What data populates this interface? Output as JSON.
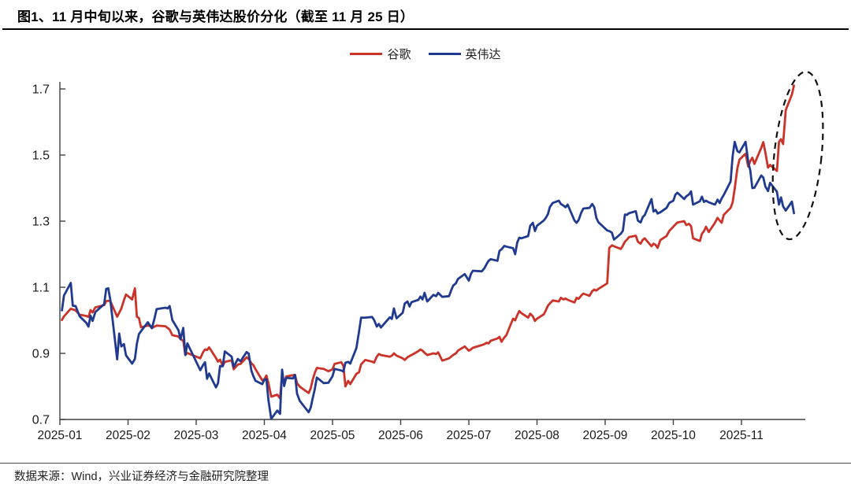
{
  "title": "图1、11 月中旬以来，谷歌与英伟达股价分化（截至 11 月 25 日）",
  "source": "数据来源：Wind，兴业证券经济与金融研究院整理",
  "legend": [
    {
      "label": "谷歌",
      "color": "#cc3228"
    },
    {
      "label": "英伟达",
      "color": "#203a8f"
    }
  ],
  "colors": {
    "axis": "#404040",
    "tick_text": "#1a1a1a",
    "annotation": "#111111"
  },
  "chart_data": {
    "type": "line",
    "title": "谷歌与英伟达股价分化（截至 11 月 25 日）",
    "xlabel": "",
    "ylabel": "",
    "ylim": [
      0.7,
      1.7
    ],
    "y_ticks": [
      0.7,
      0.9,
      1.1,
      1.3,
      1.5,
      1.7
    ],
    "x_tick_labels": [
      "2025-01",
      "2025-02",
      "2025-03",
      "2025-04",
      "2025-05",
      "2025-06",
      "2025-07",
      "2025-08",
      "2025-09",
      "2025-10",
      "2025-11"
    ],
    "grid": false,
    "legend_position": "top-center",
    "annotation": {
      "type": "dashed-ellipse",
      "meaning": "highlight of mid-November divergence",
      "center_month": 10.7,
      "center_value": 1.52
    },
    "x_months": [
      0.03,
      0.06,
      0.16,
      0.19,
      0.23,
      0.29,
      0.39,
      0.42,
      0.45,
      0.48,
      0.52,
      0.65,
      0.68,
      0.71,
      0.74,
      0.84,
      0.87,
      0.9,
      0.94,
      0.97,
      1.06,
      1.1,
      1.13,
      1.16,
      1.19,
      1.29,
      1.32,
      1.35,
      1.39,
      1.42,
      1.55,
      1.58,
      1.61,
      1.65,
      1.74,
      1.77,
      1.81,
      1.84,
      1.87,
      2.06,
      2.1,
      2.13,
      2.16,
      2.19,
      2.29,
      2.32,
      2.35,
      2.39,
      2.42,
      2.52,
      2.55,
      2.61,
      2.65,
      2.74,
      2.77,
      2.81,
      2.84,
      2.87,
      2.97,
      3.0,
      3.03,
      3.06,
      3.1,
      3.19,
      3.23,
      3.26,
      3.29,
      3.32,
      3.42,
      3.45,
      3.48,
      3.52,
      3.65,
      3.68,
      3.71,
      3.74,
      3.77,
      3.87,
      3.94,
      4.0,
      4.03,
      4.13,
      4.16,
      4.19,
      4.23,
      4.26,
      4.35,
      4.39,
      4.42,
      4.48,
      4.58,
      4.61,
      4.65,
      4.68,
      4.71,
      4.84,
      4.87,
      4.9,
      4.94,
      5.03,
      5.06,
      5.1,
      5.13,
      5.16,
      5.26,
      5.29,
      5.32,
      5.35,
      5.39,
      5.48,
      5.52,
      5.55,
      5.61,
      5.71,
      5.74,
      5.77,
      5.81,
      5.84,
      5.94,
      6.0,
      6.03,
      6.06,
      6.19,
      6.23,
      6.26,
      6.29,
      6.32,
      6.42,
      6.45,
      6.48,
      6.52,
      6.55,
      6.65,
      6.68,
      6.71,
      6.74,
      6.77,
      6.87,
      6.9,
      6.94,
      6.97,
      7.0,
      7.1,
      7.13,
      7.16,
      7.19,
      7.23,
      7.32,
      7.35,
      7.39,
      7.42,
      7.45,
      7.55,
      7.58,
      7.61,
      7.65,
      7.68,
      7.77,
      7.81,
      7.84,
      7.87,
      7.9,
      8.03,
      8.06,
      8.1,
      8.13,
      8.23,
      8.26,
      8.29,
      8.32,
      8.35,
      8.45,
      8.48,
      8.52,
      8.55,
      8.58,
      8.68,
      8.71,
      8.74,
      8.77,
      8.81,
      8.9,
      8.94,
      9.0,
      9.03,
      9.06,
      9.16,
      9.19,
      9.23,
      9.26,
      9.29,
      9.39,
      9.42,
      9.45,
      9.48,
      9.52,
      9.61,
      9.65,
      9.68,
      9.71,
      9.74,
      9.84,
      9.87,
      9.9,
      9.94,
      9.97,
      10.06,
      10.1,
      10.13,
      10.16,
      10.19,
      10.29,
      10.32,
      10.35,
      10.39,
      10.42,
      10.52,
      10.55,
      10.58,
      10.61,
      10.65,
      10.74,
      10.77
    ],
    "series": [
      {
        "name": "谷歌",
        "color": "#cc3228",
        "values": [
          1.001,
          1.012,
          1.035,
          1.033,
          1.03,
          1.017,
          1.013,
          1.01,
          1.031,
          1.024,
          1.039,
          1.046,
          1.058,
          1.059,
          1.058,
          1.011,
          1.023,
          1.035,
          1.061,
          1.078,
          1.063,
          1.097,
          1.011,
          1.007,
          0.979,
          0.984,
          0.983,
          0.977,
          0.981,
          0.984,
          0.982,
          0.977,
          0.972,
          0.955,
          0.951,
          0.943,
          0.938,
          0.895,
          0.901,
          0.885,
          0.903,
          0.912,
          0.91,
          0.918,
          0.886,
          0.875,
          0.881,
          0.862,
          0.874,
          0.879,
          0.852,
          0.866,
          0.868,
          0.888,
          0.883,
          0.87,
          0.864,
          0.852,
          0.818,
          0.822,
          0.833,
          0.81,
          0.769,
          0.775,
          0.764,
          0.838,
          0.807,
          0.83,
          0.834,
          0.835,
          0.81,
          0.799,
          0.78,
          0.794,
          0.821,
          0.841,
          0.856,
          0.853,
          0.846,
          0.852,
          0.868,
          0.873,
          0.862,
          0.8,
          0.817,
          0.807,
          0.838,
          0.843,
          0.867,
          0.88,
          0.875,
          0.872,
          0.89,
          0.898,
          0.895,
          0.89,
          0.893,
          0.9,
          0.893,
          0.885,
          0.88,
          0.888,
          0.892,
          0.895,
          0.907,
          0.912,
          0.908,
          0.902,
          0.895,
          0.9,
          0.898,
          0.903,
          0.878,
          0.885,
          0.89,
          0.895,
          0.9,
          0.908,
          0.921,
          0.908,
          0.912,
          0.917,
          0.925,
          0.928,
          0.932,
          0.93,
          0.938,
          0.945,
          0.95,
          0.935,
          0.948,
          0.955,
          1.005,
          1.0,
          1.015,
          1.028,
          1.022,
          1.008,
          1.02,
          1.012,
          0.998,
          1.005,
          1.018,
          1.03,
          1.044,
          1.051,
          1.06,
          1.057,
          1.068,
          1.063,
          1.066,
          1.062,
          1.054,
          1.068,
          1.065,
          1.075,
          1.081,
          1.074,
          1.088,
          1.093,
          1.09,
          1.095,
          1.112,
          1.219,
          1.227,
          1.224,
          1.216,
          1.226,
          1.238,
          1.244,
          1.252,
          1.256,
          1.238,
          1.232,
          1.243,
          1.248,
          1.224,
          1.232,
          1.228,
          1.219,
          1.243,
          1.255,
          1.27,
          1.283,
          1.29,
          1.296,
          1.3,
          1.288,
          1.292,
          1.285,
          1.248,
          1.24,
          1.262,
          1.27,
          1.283,
          1.267,
          1.295,
          1.31,
          1.302,
          1.295,
          1.319,
          1.34,
          1.357,
          1.398,
          1.46,
          1.486,
          1.504,
          1.465,
          1.482,
          1.492,
          1.473,
          1.522,
          1.539,
          1.508,
          1.462,
          1.47,
          1.452,
          1.54,
          1.548,
          1.533,
          1.636,
          1.683,
          1.71
        ]
      },
      {
        "name": "英伟达",
        "color": "#203a8f",
        "values": [
          1.03,
          1.075,
          1.113,
          1.044,
          1.043,
          1.012,
          0.992,
          0.981,
          1.014,
          0.998,
          1.025,
          1.049,
          1.095,
          1.097,
          1.062,
          0.882,
          0.96,
          0.921,
          0.928,
          0.894,
          0.869,
          0.883,
          0.929,
          0.958,
          0.967,
          0.994,
          0.985,
          0.976,
          1.007,
          1.034,
          1.038,
          1.036,
          1.043,
          1.001,
          0.97,
          0.943,
          0.977,
          0.895,
          0.93,
          0.849,
          0.864,
          0.873,
          0.823,
          0.839,
          0.797,
          0.81,
          0.862,
          0.861,
          0.906,
          0.89,
          0.859,
          0.883,
          0.876,
          0.904,
          0.899,
          0.847,
          0.83,
          0.817,
          0.807,
          0.82,
          0.822,
          0.758,
          0.702,
          0.727,
          0.717,
          0.851,
          0.801,
          0.826,
          0.824,
          0.835,
          0.778,
          0.756,
          0.722,
          0.736,
          0.765,
          0.792,
          0.827,
          0.81,
          0.811,
          0.831,
          0.853,
          0.848,
          0.845,
          0.872,
          0.874,
          0.869,
          0.916,
          0.967,
          1.008,
          1.008,
          1.01,
          1.001,
          0.981,
          0.989,
          0.978,
          1.009,
          1.004,
          1.036,
          1.006,
          1.023,
          1.051,
          1.057,
          1.042,
          1.055,
          1.062,
          1.072,
          1.063,
          1.083,
          1.057,
          1.077,
          1.073,
          1.083,
          1.071,
          1.073,
          1.09,
          1.105,
          1.112,
          1.125,
          1.14,
          1.12,
          1.14,
          1.15,
          1.148,
          1.158,
          1.17,
          1.18,
          1.185,
          1.18,
          1.21,
          1.215,
          1.225,
          1.223,
          1.218,
          1.2,
          1.235,
          1.25,
          1.248,
          1.255,
          1.286,
          1.295,
          1.27,
          1.286,
          1.302,
          1.31,
          1.321,
          1.343,
          1.355,
          1.362,
          1.352,
          1.347,
          1.342,
          1.35,
          1.302,
          1.295,
          1.303,
          1.326,
          1.338,
          1.34,
          1.352,
          1.342,
          1.31,
          1.297,
          1.272,
          1.27,
          1.265,
          1.244,
          1.262,
          1.271,
          1.32,
          1.319,
          1.324,
          1.33,
          1.302,
          1.296,
          1.312,
          1.318,
          1.367,
          1.329,
          1.334,
          1.323,
          1.327,
          1.34,
          1.355,
          1.362,
          1.38,
          1.386,
          1.367,
          1.375,
          1.381,
          1.39,
          1.35,
          1.36,
          1.374,
          1.358,
          1.362,
          1.357,
          1.35,
          1.365,
          1.355,
          1.369,
          1.379,
          1.42,
          1.497,
          1.54,
          1.512,
          1.508,
          1.54,
          1.479,
          1.453,
          1.4,
          1.401,
          1.438,
          1.432,
          1.405,
          1.391,
          1.416,
          1.389,
          1.35,
          1.372,
          1.345,
          1.332,
          1.359,
          1.324
        ]
      }
    ]
  }
}
